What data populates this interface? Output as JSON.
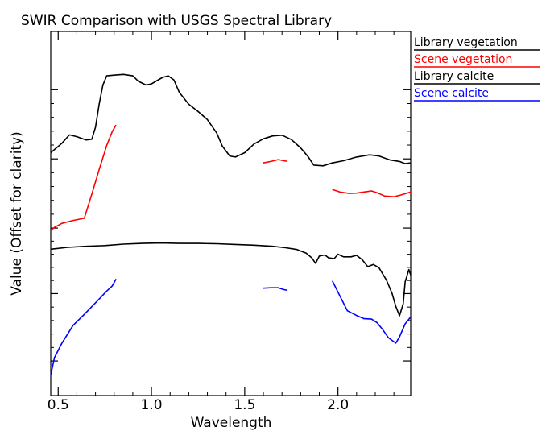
{
  "chart_data": {
    "type": "line",
    "title": "SWIR Comparison with USGS Spectral Library",
    "xlabel": "Wavelength",
    "ylabel": "Value (Offset for clarity)",
    "xlim": [
      0.46,
      2.39
    ],
    "ylim": [
      0,
      100
    ],
    "x_ticks": [
      {
        "value": 0.5,
        "label": "0.5"
      },
      {
        "value": 1.0,
        "label": "1.0"
      },
      {
        "value": 1.5,
        "label": "1.5"
      },
      {
        "value": 2.0,
        "label": "2.0"
      }
    ],
    "y_ticks": [
      9.5,
      28,
      46,
      65,
      84
    ],
    "legend_position": "right",
    "series": [
      {
        "name": "Library vegetation",
        "color": "#000000",
        "segments": [
          [
            [
              0.46,
              66.7
            ],
            [
              0.52,
              69.3
            ],
            [
              0.56,
              71.6
            ],
            [
              0.6,
              71.1
            ],
            [
              0.65,
              70.2
            ],
            [
              0.68,
              70.4
            ],
            [
              0.7,
              73.7
            ],
            [
              0.72,
              80.1
            ],
            [
              0.74,
              85.3
            ],
            [
              0.76,
              87.8
            ],
            [
              0.8,
              88.0
            ],
            [
              0.85,
              88.2
            ],
            [
              0.9,
              87.8
            ],
            [
              0.93,
              86.3
            ],
            [
              0.97,
              85.3
            ],
            [
              1.0,
              85.6
            ],
            [
              1.03,
              86.5
            ],
            [
              1.06,
              87.4
            ],
            [
              1.09,
              87.8
            ],
            [
              1.12,
              86.7
            ],
            [
              1.15,
              83.2
            ],
            [
              1.2,
              80.0
            ],
            [
              1.25,
              78.0
            ],
            [
              1.3,
              75.8
            ],
            [
              1.35,
              72.1
            ],
            [
              1.38,
              68.5
            ],
            [
              1.42,
              65.8
            ],
            [
              1.45,
              65.5
            ],
            [
              1.5,
              66.7
            ],
            [
              1.55,
              69.1
            ],
            [
              1.6,
              70.5
            ],
            [
              1.65,
              71.3
            ],
            [
              1.7,
              71.5
            ],
            [
              1.75,
              70.3
            ],
            [
              1.8,
              68.0
            ],
            [
              1.84,
              65.6
            ],
            [
              1.87,
              63.3
            ],
            [
              1.92,
              63.1
            ],
            [
              1.97,
              63.9
            ],
            [
              2.03,
              64.5
            ],
            [
              2.1,
              65.5
            ],
            [
              2.17,
              66.1
            ],
            [
              2.22,
              65.8
            ],
            [
              2.28,
              64.7
            ],
            [
              2.33,
              64.3
            ],
            [
              2.36,
              63.7
            ],
            [
              2.39,
              63.9
            ]
          ]
        ]
      },
      {
        "name": "Scene vegetation",
        "color": "#ff0000",
        "segments": [
          [
            [
              0.46,
              45.3
            ],
            [
              0.48,
              46.2
            ],
            [
              0.52,
              47.3
            ],
            [
              0.58,
              48.1
            ],
            [
              0.64,
              48.7
            ],
            [
              0.68,
              55.3
            ],
            [
              0.72,
              62.1
            ],
            [
              0.76,
              68.7
            ],
            [
              0.79,
              72.5
            ],
            [
              0.81,
              74.3
            ]
          ],
          [
            [
              1.6,
              63.9
            ],
            [
              1.64,
              64.3
            ],
            [
              1.68,
              64.8
            ],
            [
              1.71,
              64.5
            ],
            [
              1.73,
              64.3
            ]
          ],
          [
            [
              1.97,
              56.6
            ],
            [
              2.01,
              55.9
            ],
            [
              2.06,
              55.5
            ],
            [
              2.1,
              55.6
            ],
            [
              2.14,
              55.9
            ],
            [
              2.18,
              56.2
            ],
            [
              2.21,
              55.7
            ],
            [
              2.25,
              54.8
            ],
            [
              2.3,
              54.6
            ],
            [
              2.34,
              55.1
            ],
            [
              2.39,
              55.9
            ]
          ]
        ]
      },
      {
        "name": "Library calcite",
        "color": "#000000",
        "segments": [
          [
            [
              0.46,
              40.2
            ],
            [
              0.55,
              40.7
            ],
            [
              0.65,
              41.0
            ],
            [
              0.75,
              41.2
            ],
            [
              0.85,
              41.6
            ],
            [
              0.95,
              41.8
            ],
            [
              1.05,
              41.9
            ],
            [
              1.15,
              41.8
            ],
            [
              1.25,
              41.8
            ],
            [
              1.35,
              41.7
            ],
            [
              1.45,
              41.5
            ],
            [
              1.55,
              41.3
            ],
            [
              1.65,
              41.0
            ],
            [
              1.72,
              40.6
            ],
            [
              1.78,
              40.1
            ],
            [
              1.83,
              39.1
            ],
            [
              1.86,
              37.8
            ],
            [
              1.88,
              36.3
            ],
            [
              1.9,
              38.3
            ],
            [
              1.93,
              38.6
            ],
            [
              1.95,
              37.8
            ],
            [
              1.98,
              37.6
            ],
            [
              2.0,
              38.8
            ],
            [
              2.03,
              38.1
            ],
            [
              2.07,
              38.1
            ],
            [
              2.1,
              38.5
            ],
            [
              2.13,
              37.3
            ],
            [
              2.16,
              35.4
            ],
            [
              2.19,
              36.0
            ],
            [
              2.22,
              35.1
            ],
            [
              2.26,
              31.7
            ],
            [
              2.29,
              28.1
            ],
            [
              2.31,
              24.5
            ],
            [
              2.33,
              21.9
            ],
            [
              2.35,
              25.2
            ],
            [
              2.36,
              31.2
            ],
            [
              2.38,
              34.6
            ],
            [
              2.39,
              33.1
            ]
          ]
        ]
      },
      {
        "name": "Scene calcite",
        "color": "#0000ff",
        "segments": [
          [
            [
              0.46,
              5.6
            ],
            [
              0.48,
              10.4
            ],
            [
              0.52,
              14.4
            ],
            [
              0.58,
              19.3
            ],
            [
              0.64,
              22.3
            ],
            [
              0.71,
              26.0
            ],
            [
              0.76,
              28.7
            ],
            [
              0.79,
              30.1
            ],
            [
              0.81,
              32.0
            ]
          ],
          [
            [
              1.6,
              29.5
            ],
            [
              1.64,
              29.6
            ],
            [
              1.68,
              29.6
            ],
            [
              1.71,
              29.1
            ],
            [
              1.73,
              28.9
            ]
          ],
          [
            [
              1.97,
              31.5
            ],
            [
              2.01,
              27.4
            ],
            [
              2.05,
              23.3
            ],
            [
              2.1,
              22.0
            ],
            [
              2.14,
              21.1
            ],
            [
              2.18,
              21.0
            ],
            [
              2.21,
              20.0
            ],
            [
              2.24,
              18.1
            ],
            [
              2.27,
              15.9
            ],
            [
              2.31,
              14.4
            ],
            [
              2.33,
              16.1
            ],
            [
              2.36,
              19.7
            ],
            [
              2.39,
              21.6
            ]
          ]
        ]
      }
    ]
  }
}
